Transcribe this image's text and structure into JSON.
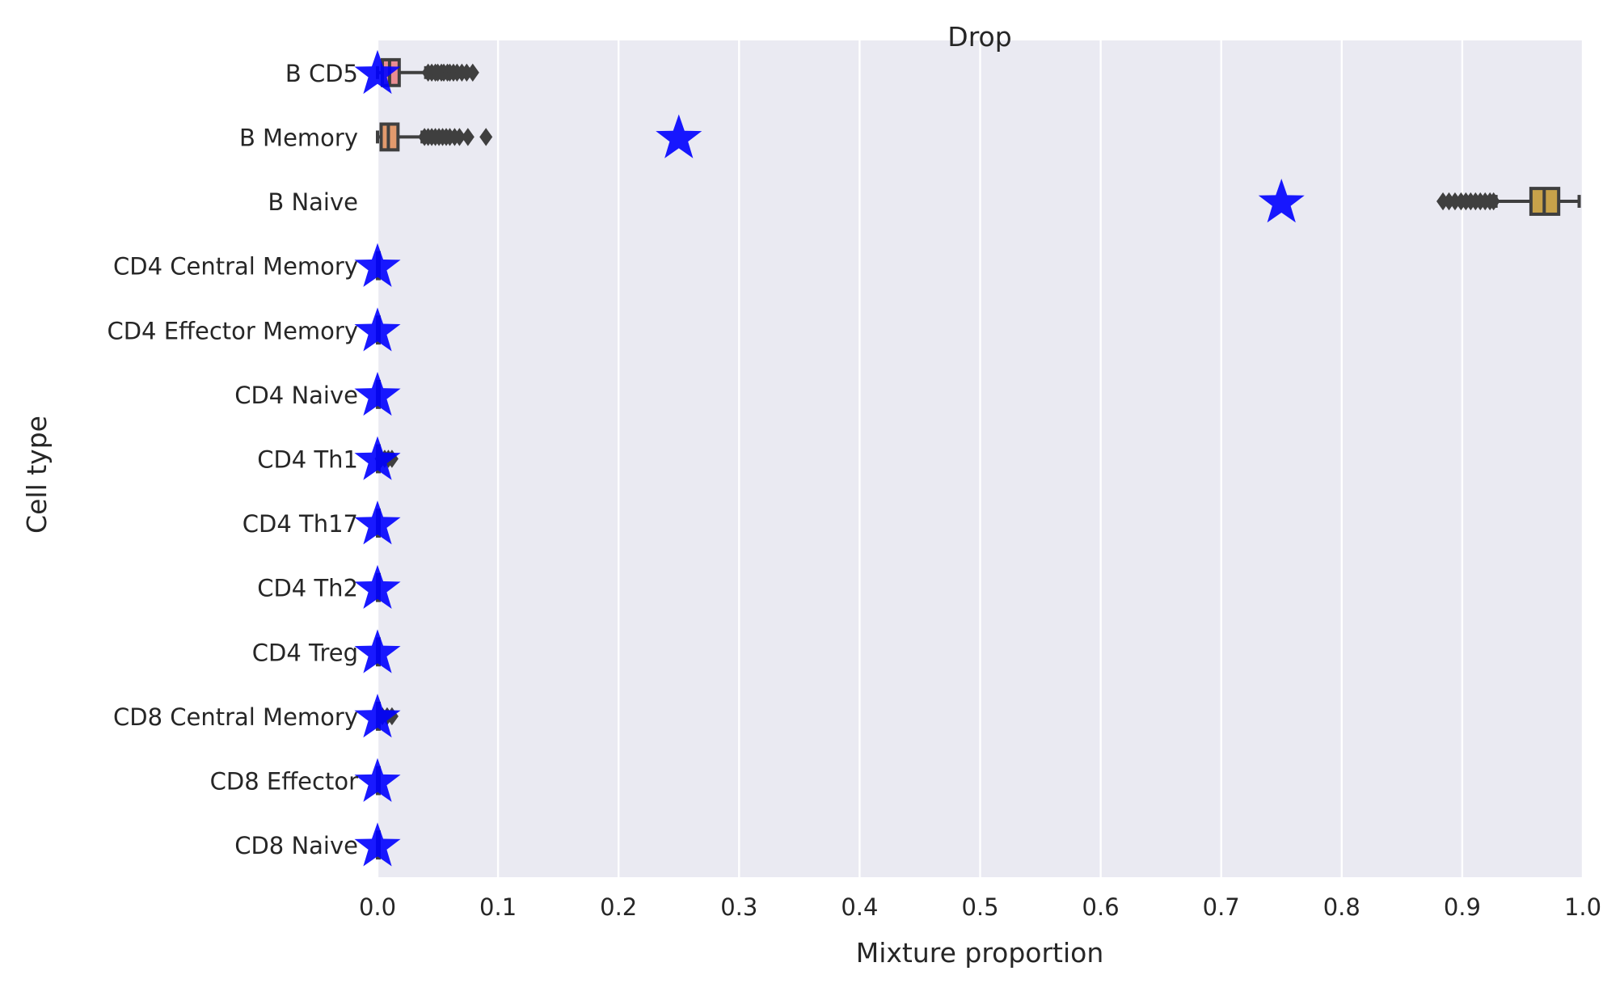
{
  "chart_data": {
    "type": "box",
    "orientation": "horizontal",
    "title": "Drop",
    "xlabel": "Mixture proportion",
    "ylabel": "Cell type",
    "xlim": [
      0.0,
      1.0
    ],
    "xticks": [
      "0.0",
      "0.1",
      "0.2",
      "0.3",
      "0.4",
      "0.5",
      "0.6",
      "0.7",
      "0.8",
      "0.9",
      "1.0"
    ],
    "grid": true,
    "categories": [
      "B CD5",
      "B Memory",
      "B Naive",
      "CD4 Central Memory",
      "CD4 Effector Memory",
      "CD4 Naive",
      "CD4 Th1",
      "CD4 Th17",
      "CD4 Th2",
      "CD4 Treg",
      "CD8 Central Memory",
      "CD8 Effector",
      "CD8 Naive"
    ],
    "boxes": [
      {
        "category": "B CD5",
        "whisker_low": 0.0,
        "q1": 0.004,
        "median": 0.01,
        "q3": 0.018,
        "whisker_high": 0.04,
        "outliers": [
          0.042,
          0.045,
          0.048,
          0.05,
          0.053,
          0.055,
          0.058,
          0.06,
          0.063,
          0.066,
          0.07,
          0.074,
          0.079
        ],
        "color": "#e98d93"
      },
      {
        "category": "B Memory",
        "whisker_low": 0.0,
        "q1": 0.003,
        "median": 0.009,
        "q3": 0.017,
        "whisker_high": 0.037,
        "outliers": [
          0.039,
          0.042,
          0.045,
          0.048,
          0.051,
          0.054,
          0.057,
          0.06,
          0.064,
          0.068,
          0.075,
          0.09
        ],
        "color": "#e29a6d"
      },
      {
        "category": "B Naive",
        "whisker_low": 0.928,
        "q1": 0.957,
        "median": 0.968,
        "q3": 0.98,
        "whisker_high": 0.997,
        "outliers": [
          0.884,
          0.889,
          0.894,
          0.899,
          0.903,
          0.907,
          0.911,
          0.915,
          0.919,
          0.923,
          0.926
        ],
        "color": "#c8a24a"
      },
      {
        "category": "CD4 Central Memory",
        "whisker_low": 0.0,
        "q1": 0.0,
        "median": 0.0,
        "q3": 0.0,
        "whisker_high": 0.0,
        "outliers": [],
        "color": "#a8ac4a"
      },
      {
        "category": "CD4 Effector Memory",
        "whisker_low": 0.0,
        "q1": 0.0,
        "median": 0.0,
        "q3": 0.0,
        "whisker_high": 0.0,
        "outliers": [],
        "color": "#8cb04a"
      },
      {
        "category": "CD4 Naive",
        "whisker_low": 0.0,
        "q1": 0.0,
        "median": 0.0,
        "q3": 0.0,
        "whisker_high": 0.0,
        "outliers": [],
        "color": "#5db56a"
      },
      {
        "category": "CD4 Th1",
        "whisker_low": 0.0,
        "q1": 0.0,
        "median": 0.0,
        "q3": 0.0,
        "whisker_high": 0.0,
        "outliers": [
          0.003,
          0.006,
          0.009,
          0.012
        ],
        "color": "#4db49a"
      },
      {
        "category": "CD4 Th17",
        "whisker_low": 0.0,
        "q1": 0.0,
        "median": 0.0,
        "q3": 0.0,
        "whisker_high": 0.0,
        "outliers": [],
        "color": "#4ab0ae"
      },
      {
        "category": "CD4 Th2",
        "whisker_low": 0.0,
        "q1": 0.0,
        "median": 0.0,
        "q3": 0.0,
        "whisker_high": 0.0,
        "outliers": [],
        "color": "#4caac4"
      },
      {
        "category": "CD4 Treg",
        "whisker_low": 0.0,
        "q1": 0.0,
        "median": 0.0,
        "q3": 0.0,
        "whisker_high": 0.0,
        "outliers": [],
        "color": "#6a9fd8"
      },
      {
        "category": "CD8 Central Memory",
        "whisker_low": 0.0,
        "q1": 0.0,
        "median": 0.0,
        "q3": 0.0,
        "whisker_high": 0.0,
        "outliers": [
          0.004,
          0.008,
          0.012
        ],
        "color": "#9f8fe0"
      },
      {
        "category": "CD8 Effector",
        "whisker_low": 0.0,
        "q1": 0.0,
        "median": 0.0,
        "q3": 0.0,
        "whisker_high": 0.0,
        "outliers": [],
        "color": "#c886d8"
      },
      {
        "category": "CD8 Naive",
        "whisker_low": 0.0,
        "q1": 0.0,
        "median": 0.0,
        "q3": 0.0,
        "whisker_high": 0.0,
        "outliers": [],
        "color": "#e183b8"
      }
    ],
    "true_values": {
      "marker": "star",
      "color": "#0000ff",
      "values": [
        0.0,
        0.25,
        0.75,
        0.0,
        0.0,
        0.0,
        0.0,
        0.0,
        0.0,
        0.0,
        0.0,
        0.0,
        0.0
      ]
    },
    "colors": {
      "plot_background": "#eaeaf2",
      "grid": "#ffffff",
      "box_edge": "#3f3f3f",
      "text": "#262626"
    }
  }
}
